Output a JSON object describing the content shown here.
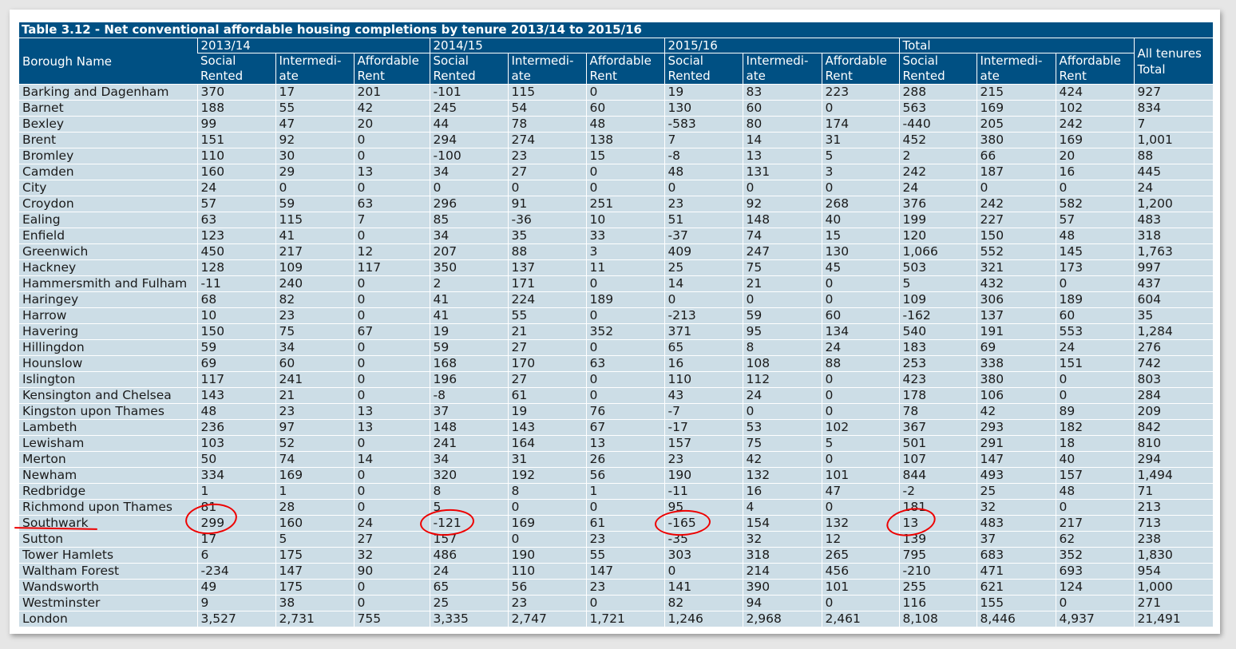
{
  "table": {
    "title": "Table 3.12 - Net conventional affordable housing completions by tenure 2013/14 to 2015/16",
    "borough_header": "Borough Name",
    "year_groups": [
      "2013/14",
      "2014/15",
      "2015/16",
      "Total"
    ],
    "sub_headers": [
      "Social Rented",
      "Intermedi- ate",
      "Affordable Rent"
    ],
    "all_tenures_header": "All tenures Total",
    "rows": [
      {
        "name": "Barking and Dagenham",
        "values": [
          "370",
          "17",
          "201",
          "-101",
          "115",
          "0",
          "19",
          "83",
          "223",
          "288",
          "215",
          "424",
          "927"
        ]
      },
      {
        "name": "Barnet",
        "values": [
          "188",
          "55",
          "42",
          "245",
          "54",
          "60",
          "130",
          "60",
          "0",
          "563",
          "169",
          "102",
          "834"
        ]
      },
      {
        "name": "Bexley",
        "values": [
          "99",
          "47",
          "20",
          "44",
          "78",
          "48",
          "-583",
          "80",
          "174",
          "-440",
          "205",
          "242",
          "7"
        ]
      },
      {
        "name": "Brent",
        "values": [
          "151",
          "92",
          "0",
          "294",
          "274",
          "138",
          "7",
          "14",
          "31",
          "452",
          "380",
          "169",
          "1,001"
        ]
      },
      {
        "name": "Bromley",
        "values": [
          "110",
          "30",
          "0",
          "-100",
          "23",
          "15",
          "-8",
          "13",
          "5",
          "2",
          "66",
          "20",
          "88"
        ]
      },
      {
        "name": "Camden",
        "values": [
          "160",
          "29",
          "13",
          "34",
          "27",
          "0",
          "48",
          "131",
          "3",
          "242",
          "187",
          "16",
          "445"
        ]
      },
      {
        "name": "City",
        "values": [
          "24",
          "0",
          "0",
          "0",
          "0",
          "0",
          "0",
          "0",
          "0",
          "24",
          "0",
          "0",
          "24"
        ]
      },
      {
        "name": "Croydon",
        "values": [
          "57",
          "59",
          "63",
          "296",
          "91",
          "251",
          "23",
          "92",
          "268",
          "376",
          "242",
          "582",
          "1,200"
        ]
      },
      {
        "name": "Ealing",
        "values": [
          "63",
          "115",
          "7",
          "85",
          "-36",
          "10",
          "51",
          "148",
          "40",
          "199",
          "227",
          "57",
          "483"
        ]
      },
      {
        "name": "Enfield",
        "values": [
          "123",
          "41",
          "0",
          "34",
          "35",
          "33",
          "-37",
          "74",
          "15",
          "120",
          "150",
          "48",
          "318"
        ]
      },
      {
        "name": "Greenwich",
        "values": [
          "450",
          "217",
          "12",
          "207",
          "88",
          "3",
          "409",
          "247",
          "130",
          "1,066",
          "552",
          "145",
          "1,763"
        ]
      },
      {
        "name": "Hackney",
        "values": [
          "128",
          "109",
          "117",
          "350",
          "137",
          "11",
          "25",
          "75",
          "45",
          "503",
          "321",
          "173",
          "997"
        ]
      },
      {
        "name": "Hammersmith and Fulham",
        "values": [
          "-11",
          "240",
          "0",
          "2",
          "171",
          "0",
          "14",
          "21",
          "0",
          "5",
          "432",
          "0",
          "437"
        ]
      },
      {
        "name": "Haringey",
        "values": [
          "68",
          "82",
          "0",
          "41",
          "224",
          "189",
          "0",
          "0",
          "0",
          "109",
          "306",
          "189",
          "604"
        ]
      },
      {
        "name": "Harrow",
        "values": [
          "10",
          "23",
          "0",
          "41",
          "55",
          "0",
          "-213",
          "59",
          "60",
          "-162",
          "137",
          "60",
          "35"
        ]
      },
      {
        "name": "Havering",
        "values": [
          "150",
          "75",
          "67",
          "19",
          "21",
          "352",
          "371",
          "95",
          "134",
          "540",
          "191",
          "553",
          "1,284"
        ]
      },
      {
        "name": "Hillingdon",
        "values": [
          "59",
          "34",
          "0",
          "59",
          "27",
          "0",
          "65",
          "8",
          "24",
          "183",
          "69",
          "24",
          "276"
        ]
      },
      {
        "name": "Hounslow",
        "values": [
          "69",
          "60",
          "0",
          "168",
          "170",
          "63",
          "16",
          "108",
          "88",
          "253",
          "338",
          "151",
          "742"
        ]
      },
      {
        "name": "Islington",
        "values": [
          "117",
          "241",
          "0",
          "196",
          "27",
          "0",
          "110",
          "112",
          "0",
          "423",
          "380",
          "0",
          "803"
        ]
      },
      {
        "name": "Kensington and Chelsea",
        "values": [
          "143",
          "21",
          "0",
          "-8",
          "61",
          "0",
          "43",
          "24",
          "0",
          "178",
          "106",
          "0",
          "284"
        ]
      },
      {
        "name": "Kingston upon Thames",
        "values": [
          "48",
          "23",
          "13",
          "37",
          "19",
          "76",
          "-7",
          "0",
          "0",
          "78",
          "42",
          "89",
          "209"
        ]
      },
      {
        "name": "Lambeth",
        "values": [
          "236",
          "97",
          "13",
          "148",
          "143",
          "67",
          "-17",
          "53",
          "102",
          "367",
          "293",
          "182",
          "842"
        ]
      },
      {
        "name": "Lewisham",
        "values": [
          "103",
          "52",
          "0",
          "241",
          "164",
          "13",
          "157",
          "75",
          "5",
          "501",
          "291",
          "18",
          "810"
        ]
      },
      {
        "name": "Merton",
        "values": [
          "50",
          "74",
          "14",
          "34",
          "31",
          "26",
          "23",
          "42",
          "0",
          "107",
          "147",
          "40",
          "294"
        ]
      },
      {
        "name": "Newham",
        "values": [
          "334",
          "169",
          "0",
          "320",
          "192",
          "56",
          "190",
          "132",
          "101",
          "844",
          "493",
          "157",
          "1,494"
        ]
      },
      {
        "name": "Redbridge",
        "values": [
          "1",
          "1",
          "0",
          "8",
          "8",
          "1",
          "-11",
          "16",
          "47",
          "-2",
          "25",
          "48",
          "71"
        ]
      },
      {
        "name": "Richmond upon Thames",
        "values": [
          "81",
          "28",
          "0",
          "5",
          "0",
          "0",
          "95",
          "4",
          "0",
          "181",
          "32",
          "0",
          "213"
        ]
      },
      {
        "name": "Southwark",
        "values": [
          "299",
          "160",
          "24",
          "-121",
          "169",
          "61",
          "-165",
          "154",
          "132",
          "13",
          "483",
          "217",
          "713"
        ]
      },
      {
        "name": "Sutton",
        "values": [
          "17",
          "5",
          "27",
          "157",
          "0",
          "23",
          "-35",
          "32",
          "12",
          "139",
          "37",
          "62",
          "238"
        ]
      },
      {
        "name": "Tower Hamlets",
        "values": [
          "6",
          "175",
          "32",
          "486",
          "190",
          "55",
          "303",
          "318",
          "265",
          "795",
          "683",
          "352",
          "1,830"
        ]
      },
      {
        "name": "Waltham Forest",
        "values": [
          "-234",
          "147",
          "90",
          "24",
          "110",
          "147",
          "0",
          "214",
          "456",
          "-210",
          "471",
          "693",
          "954"
        ]
      },
      {
        "name": "Wandsworth",
        "values": [
          "49",
          "175",
          "0",
          "65",
          "56",
          "23",
          "141",
          "390",
          "101",
          "255",
          "621",
          "124",
          "1,000"
        ]
      },
      {
        "name": "Westminster",
        "values": [
          "9",
          "38",
          "0",
          "25",
          "23",
          "0",
          "82",
          "94",
          "0",
          "116",
          "155",
          "0",
          "271"
        ]
      },
      {
        "name": "London",
        "values": [
          "3,527",
          "2,731",
          "755",
          "3,335",
          "2,747",
          "1,721",
          "1,246",
          "2,968",
          "2,461",
          "8,108",
          "8,446",
          "4,937",
          "21,491"
        ]
      }
    ]
  },
  "annotations": {
    "highlighted_row": "Southwark",
    "circled_values": [
      "299",
      "-121",
      "-165",
      "13"
    ],
    "ink_color": "#ee0000"
  },
  "colors": {
    "header_bg": "#005083",
    "header_text": "#ffffff",
    "row_bg": "#ccdde6",
    "row_text": "#1a1a1a"
  }
}
